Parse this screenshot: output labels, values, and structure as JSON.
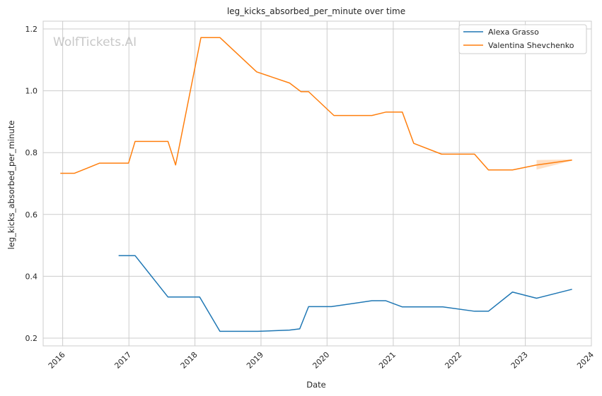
{
  "chart_data": {
    "type": "line",
    "title": "leg_kicks_absorbed_per_minute over time",
    "xlabel": "Date",
    "ylabel": "leg_kicks_absorbed_per_minute",
    "watermark": "WolfTickets.AI",
    "xlim": [
      "2015-09-15",
      "2024-01-01"
    ],
    "ylim": [
      0.175,
      1.225
    ],
    "x_ticks": [
      "2016-01-01",
      "2017-01-01",
      "2018-01-01",
      "2019-01-01",
      "2020-01-01",
      "2021-01-01",
      "2022-01-01",
      "2023-01-01",
      "2024-01-01"
    ],
    "x_tick_labels": [
      "2016",
      "2017",
      "2018",
      "2019",
      "2020",
      "2021",
      "2022",
      "2023",
      "2024"
    ],
    "y_ticks": [
      0.2,
      0.4,
      0.6,
      0.8,
      1.0,
      1.2
    ],
    "y_tick_labels": [
      "0.2",
      "0.4",
      "0.6",
      "0.8",
      "1.0",
      "1.2"
    ],
    "grid": true,
    "legend_position": "top-right",
    "series": [
      {
        "name": "Alexa Grasso",
        "color": "#1f77b4",
        "points": [
          [
            "2016-11-05",
            0.467
          ],
          [
            "2017-02-04",
            0.467
          ],
          [
            "2017-08-05",
            0.333
          ],
          [
            "2018-01-27",
            0.333
          ],
          [
            "2018-05-19",
            0.222
          ],
          [
            "2018-12-15",
            0.222
          ],
          [
            "2019-06-08",
            0.226
          ],
          [
            "2019-08-03",
            0.23
          ],
          [
            "2019-09-21",
            0.302
          ],
          [
            "2020-01-25",
            0.302
          ],
          [
            "2020-09-05",
            0.321
          ],
          [
            "2020-11-21",
            0.321
          ],
          [
            "2021-02-20",
            0.301
          ],
          [
            "2021-10-02",
            0.301
          ],
          [
            "2022-03-26",
            0.287
          ],
          [
            "2022-06-11",
            0.287
          ],
          [
            "2022-10-22",
            0.349
          ],
          [
            "2023-03-04",
            0.329
          ],
          [
            "2023-09-16",
            0.358
          ]
        ]
      },
      {
        "name": "Valentina Shevchenko",
        "color": "#ff7f0e",
        "points": [
          [
            "2015-12-19",
            0.733
          ],
          [
            "2016-03-05",
            0.733
          ],
          [
            "2016-07-23",
            0.766
          ],
          [
            "2016-12-30",
            0.766
          ],
          [
            "2017-02-04",
            0.836
          ],
          [
            "2017-08-05",
            0.836
          ],
          [
            "2017-09-16",
            0.76
          ],
          [
            "2018-02-03",
            1.172
          ],
          [
            "2018-05-19",
            1.172
          ],
          [
            "2018-12-08",
            1.061
          ],
          [
            "2019-06-08",
            1.025
          ],
          [
            "2019-08-10",
            0.997
          ],
          [
            "2019-09-21",
            0.997
          ],
          [
            "2020-02-08",
            0.92
          ],
          [
            "2020-09-05",
            0.92
          ],
          [
            "2020-11-21",
            0.931
          ],
          [
            "2021-02-20",
            0.931
          ],
          [
            "2021-04-24",
            0.83
          ],
          [
            "2021-09-25",
            0.795
          ],
          [
            "2022-03-26",
            0.795
          ],
          [
            "2022-06-11",
            0.744
          ],
          [
            "2022-10-22",
            0.744
          ],
          [
            "2023-03-04",
            0.76
          ],
          [
            "2023-09-16",
            0.776
          ]
        ],
        "band": {
          "x": [
            "2023-03-04",
            "2023-09-16"
          ],
          "lower": [
            0.745,
            0.774
          ],
          "upper": [
            0.776,
            0.778
          ]
        }
      }
    ]
  }
}
